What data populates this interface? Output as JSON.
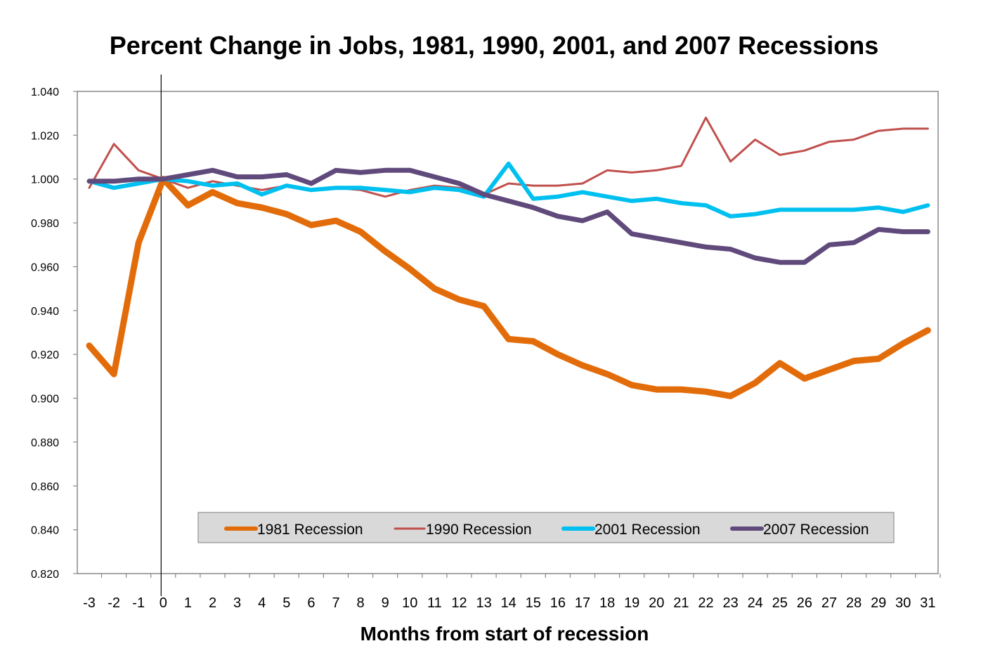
{
  "chart_data": {
    "type": "line",
    "title": "Percent Change in Jobs, 1981, 1990, 2001, and 2007 Recessions",
    "xlabel": "Months from start of recession",
    "ylabel": "",
    "x": [
      -3,
      -2,
      -1,
      0,
      1,
      2,
      3,
      4,
      5,
      6,
      7,
      8,
      9,
      10,
      11,
      12,
      13,
      14,
      15,
      16,
      17,
      18,
      19,
      20,
      21,
      22,
      23,
      24,
      25,
      26,
      27,
      28,
      29,
      30,
      31
    ],
    "xlim": [
      -3,
      31
    ],
    "ylim": [
      0.82,
      1.04
    ],
    "y_ticks": [
      "0.820",
      "0.840",
      "0.860",
      "0.880",
      "0.900",
      "0.920",
      "0.940",
      "0.960",
      "0.980",
      "1.000",
      "1.020",
      "1.040"
    ],
    "x_ticks": [
      "-3",
      "-2",
      "-1",
      "0",
      "1",
      "2",
      "3",
      "4",
      "5",
      "6",
      "7",
      "8",
      "9",
      "10",
      "11",
      "12",
      "13",
      "14",
      "15",
      "16",
      "17",
      "18",
      "19",
      "20",
      "21",
      "22",
      "23",
      "24",
      "25",
      "26",
      "27",
      "28",
      "29",
      "30",
      "31"
    ],
    "grid": false,
    "legend_position": "bottom-center inside plot",
    "reference_line_x": 0,
    "series": [
      {
        "name": "1981 Recession",
        "color": "#E36C0A",
        "width": 9,
        "values": [
          0.924,
          0.911,
          0.971,
          1.0,
          0.988,
          0.994,
          0.989,
          0.987,
          0.984,
          0.979,
          0.981,
          0.976,
          0.967,
          0.959,
          0.95,
          0.945,
          0.942,
          0.927,
          0.926,
          0.92,
          0.915,
          0.911,
          0.906,
          0.904,
          0.904,
          0.903,
          0.901,
          0.907,
          0.916,
          0.909,
          0.913,
          0.917,
          0.918,
          0.925,
          0.931
        ]
      },
      {
        "name": "1990 Recession",
        "color": "#C0504D",
        "width": 3,
        "values": [
          0.996,
          1.016,
          1.004,
          1.0,
          0.996,
          0.999,
          0.997,
          0.995,
          0.997,
          0.995,
          0.996,
          0.995,
          0.992,
          0.995,
          0.997,
          0.996,
          0.993,
          0.998,
          0.997,
          0.997,
          0.998,
          1.004,
          1.003,
          1.004,
          1.006,
          1.028,
          1.008,
          1.018,
          1.011,
          1.013,
          1.017,
          1.018,
          1.022,
          1.023,
          1.023
        ]
      },
      {
        "name": "2001 Recession",
        "color": "#00C0F0",
        "width": 6,
        "values": [
          0.999,
          0.996,
          0.998,
          1.0,
          0.999,
          0.997,
          0.998,
          0.993,
          0.997,
          0.995,
          0.996,
          0.996,
          0.995,
          0.994,
          0.996,
          0.995,
          0.992,
          1.007,
          0.991,
          0.992,
          0.994,
          0.992,
          0.99,
          0.991,
          0.989,
          0.988,
          0.983,
          0.984,
          0.986,
          0.986,
          0.986,
          0.986,
          0.987,
          0.985,
          0.988
        ]
      },
      {
        "name": "2007 Recession",
        "color": "#604A7B",
        "width": 7,
        "values": [
          0.999,
          0.999,
          1.0,
          1.0,
          1.002,
          1.004,
          1.001,
          1.001,
          1.002,
          0.998,
          1.004,
          1.003,
          1.004,
          1.004,
          1.001,
          0.998,
          0.993,
          0.99,
          0.987,
          0.983,
          0.981,
          0.985,
          0.975,
          0.973,
          0.971,
          0.969,
          0.968,
          0.964,
          0.962,
          0.962,
          0.97,
          0.971,
          0.977,
          0.976,
          0.976
        ]
      }
    ]
  }
}
